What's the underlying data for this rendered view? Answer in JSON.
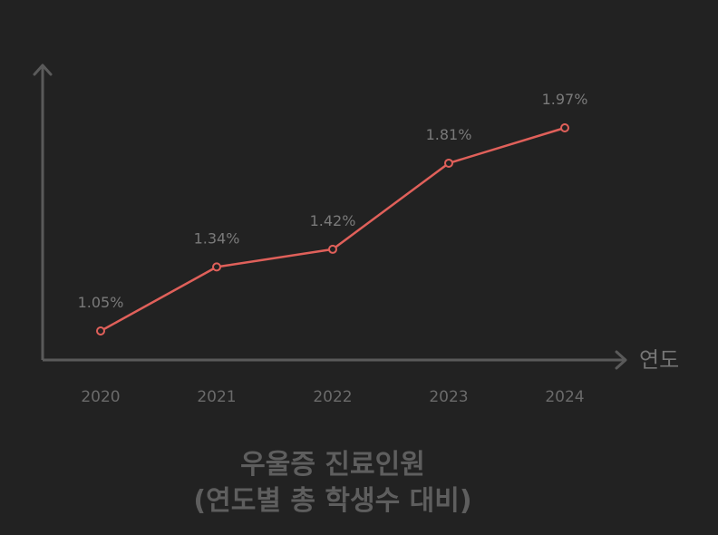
{
  "chart_data": {
    "type": "line",
    "title_lines": [
      "우울증 진료인원",
      "(연도별 총 학생수 대비)"
    ],
    "xlabel": "연도",
    "ylabel": "",
    "categories": [
      "2020",
      "2021",
      "2022",
      "2023",
      "2024"
    ],
    "series": [
      {
        "values": [
          1.05,
          1.34,
          1.42,
          1.81,
          1.97
        ],
        "labels": [
          "1.05%",
          "1.34%",
          "1.42%",
          "1.81%",
          "1.97%"
        ],
        "color": "#e0605a"
      }
    ],
    "axis_color": "#5a5a5a",
    "background": "#222222",
    "grid": false
  }
}
